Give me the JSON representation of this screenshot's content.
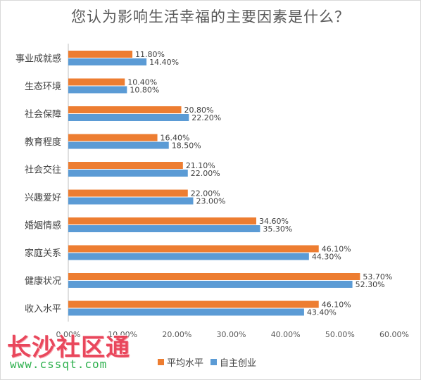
{
  "chart_data": {
    "type": "bar",
    "orientation": "horizontal",
    "title": "您认为影响生活幸福的主要因素是什么？",
    "categories": [
      "事业成就感",
      "生态环境",
      "社会保障",
      "教育程度",
      "社会交往",
      "兴趣爱好",
      "婚姻情感",
      "家庭关系",
      "健康状况",
      "收入水平"
    ],
    "series": [
      {
        "name": "平均水平",
        "color": "#ed7d31",
        "values": [
          11.8,
          10.4,
          20.8,
          16.4,
          21.1,
          22.0,
          34.6,
          46.1,
          53.7,
          46.1
        ]
      },
      {
        "name": "自主创业",
        "color": "#5b9bd5",
        "values": [
          14.4,
          10.8,
          22.2,
          18.5,
          22.0,
          23.0,
          35.3,
          44.3,
          52.3,
          43.4
        ]
      }
    ],
    "value_labels": [
      [
        "11.80%",
        "10.40%",
        "20.80%",
        "16.40%",
        "21.10%",
        "22.00%",
        "34.60%",
        "46.10%",
        "53.70%",
        "46.10%"
      ],
      [
        "14.40%",
        "10.80%",
        "22.20%",
        "18.50%",
        "22.00%",
        "23.00%",
        "35.30%",
        "44.30%",
        "52.30%",
        "43.40%"
      ]
    ],
    "xlim": [
      0,
      60
    ],
    "xticks": [
      0,
      10,
      20,
      30,
      40,
      50,
      60
    ],
    "xtick_labels": [
      "0.00%",
      "10.00%",
      "20.00%",
      "30.00%",
      "40.00%",
      "50.00%",
      "60.00%"
    ],
    "xlabel": "",
    "ylabel": "",
    "grid": false,
    "legend_position": "bottom"
  },
  "watermark": {
    "text": "长沙社区通",
    "url": "www.cssqt.com"
  }
}
